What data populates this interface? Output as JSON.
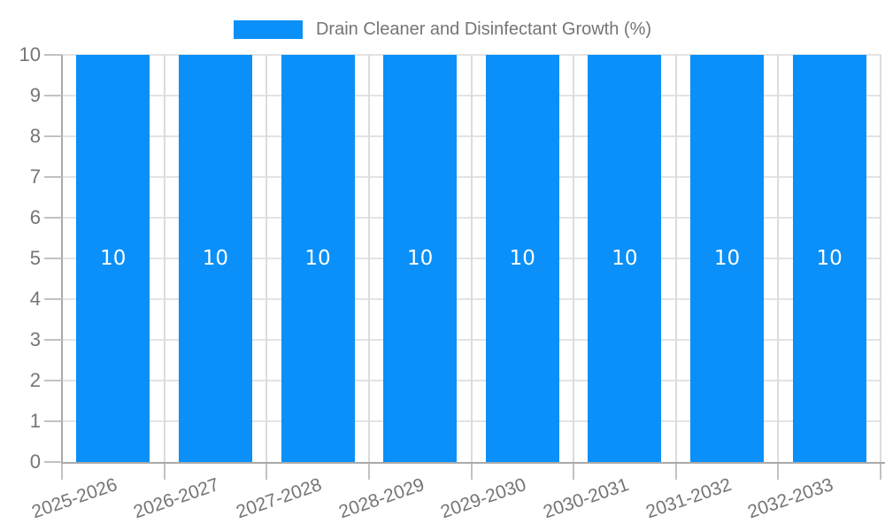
{
  "chart_data": {
    "type": "bar",
    "title": "Drain Cleaner and Disinfectant Growth (%)",
    "categories": [
      "2025-2026",
      "2026-2027",
      "2027-2028",
      "2028-2029",
      "2029-2030",
      "2030-2031",
      "2031-2032",
      "2032-2033"
    ],
    "values": [
      10,
      10,
      10,
      10,
      10,
      10,
      10,
      10
    ],
    "bar_value_labels": [
      "10",
      "10",
      "10",
      "10",
      "10",
      "10",
      "10",
      "10"
    ],
    "xlabel": "",
    "ylabel": "",
    "ylim": [
      0,
      10
    ],
    "yticks": [
      0,
      1,
      2,
      3,
      4,
      5,
      6,
      7,
      8,
      9,
      10
    ],
    "grid": true,
    "legend_position": "top",
    "colors": {
      "bar": "#0A90F8",
      "axis_line": "#A9A9A9",
      "grid_horizontal": "#E3E3E3",
      "grid_vertical": "#DCDCDC",
      "tick": "#C2C2C2",
      "axis_text": "#757575",
      "bar_value_text": "#FFFFFF",
      "background": "#FFFFFF"
    }
  }
}
